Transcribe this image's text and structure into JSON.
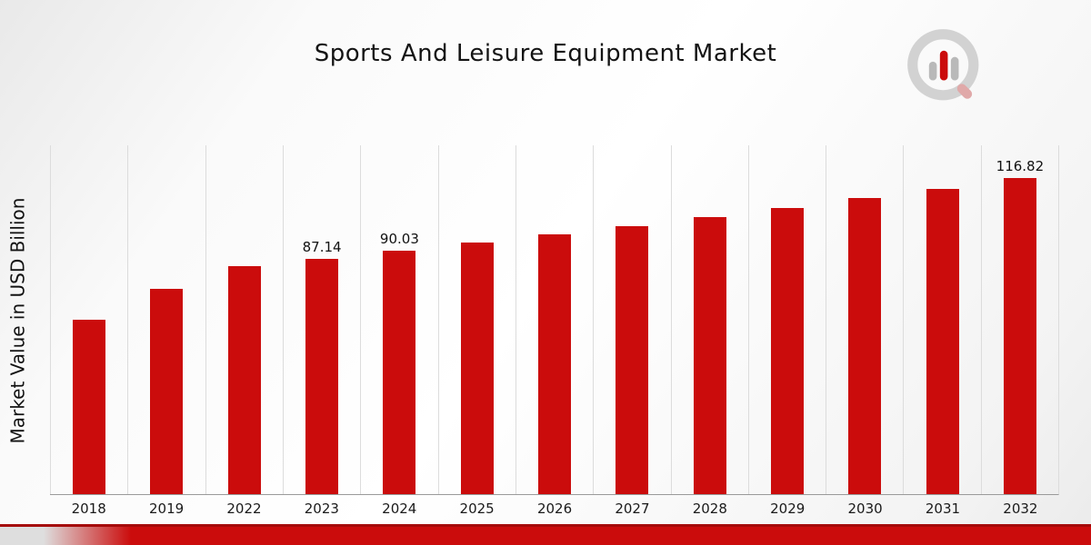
{
  "title": "Sports And Leisure Equipment Market",
  "ylabel": "Market Value in USD Billion",
  "logo": {
    "name": "market-research-future-logo"
  },
  "colors": {
    "bar": "#cb0c0c",
    "footer_band": "#cb0c0c",
    "footer_band_edge": "#a50b0b",
    "gridline": "#dcdcdc",
    "baseline": "#9a9a9a",
    "background": "#f2f2f2"
  },
  "chart_data": {
    "type": "bar",
    "title": "Sports And Leisure Equipment Market",
    "xlabel": "",
    "ylabel": "Market Value in USD Billion",
    "categories": [
      "2018",
      "2019",
      "2022",
      "2023",
      "2024",
      "2025",
      "2026",
      "2027",
      "2028",
      "2029",
      "2030",
      "2031",
      "2032"
    ],
    "values": [
      64.5,
      75.8,
      84.4,
      87.14,
      90.03,
      93.0,
      96.1,
      99.2,
      102.5,
      105.9,
      109.4,
      113.0,
      116.82
    ],
    "bar_labels": [
      "",
      "",
      "",
      "87.14",
      "90.03",
      "",
      "",
      "",
      "",
      "",
      "",
      "",
      "116.82"
    ],
    "ylim": [
      0,
      129
    ],
    "grid": "vertical",
    "legend": "none",
    "bar_color": "#cb0c0c"
  }
}
